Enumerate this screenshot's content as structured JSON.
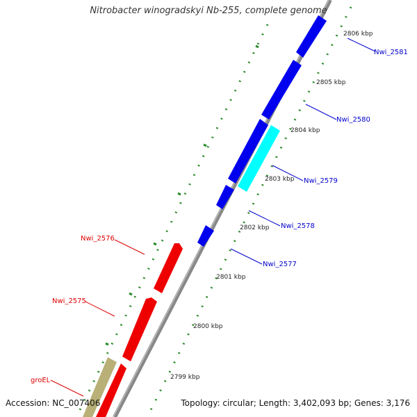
{
  "title": "Nitrobacter winogradskyi Nb-255, complete genome",
  "footer": {
    "accession": "Accession: NC_007406",
    "topology": "Topology: circular; Length: 3,402,093 bp; Genes: 3,176"
  },
  "colors": {
    "backbone": "#888888",
    "plus_strand": "#0000ee",
    "minus_strand": "#ee0000",
    "highlight": "#00ffff",
    "other": "#b8b077",
    "ticks": "#228b22",
    "label_plus": "#0000cc",
    "label_minus": "#dd0000"
  },
  "ticks": [
    {
      "label": "2806 kbp"
    },
    {
      "label": "2805 kbp"
    },
    {
      "label": "2804 kbp"
    },
    {
      "label": "2803 kbp"
    },
    {
      "label": "2802 kbp"
    },
    {
      "label": "2801 kbp"
    },
    {
      "label": "2800 kbp"
    },
    {
      "label": "2799 kbp"
    }
  ],
  "genes": [
    {
      "name": "Nwi_2581",
      "strand": "plus",
      "color": "blue"
    },
    {
      "name": "Nwi_2580",
      "strand": "plus",
      "color": "blue"
    },
    {
      "name": "Nwi_2579",
      "strand": "plus",
      "color": "cyan"
    },
    {
      "name": "Nwi_2578",
      "strand": "plus",
      "color": "blue"
    },
    {
      "name": "Nwi_2577",
      "strand": "plus",
      "color": "blue"
    },
    {
      "name": "Nwi_2576",
      "strand": "minus",
      "color": "red"
    },
    {
      "name": "Nwi_2575",
      "strand": "minus",
      "color": "red"
    },
    {
      "name": "groEL",
      "strand": "minus",
      "color": "tan"
    }
  ]
}
